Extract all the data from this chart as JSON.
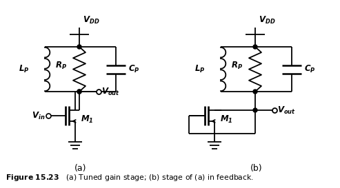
{
  "fig_width": 4.93,
  "fig_height": 2.73,
  "dpi": 100,
  "bg_color": "#ffffff",
  "line_color": "#000000",
  "line_width": 1.3,
  "caption_bold": "Figure 15.23",
  "caption_rest": "   (a) Tuned gain stage; (b) stage of (a) in feedback.",
  "label_a": "(a)",
  "label_b": "(b)"
}
